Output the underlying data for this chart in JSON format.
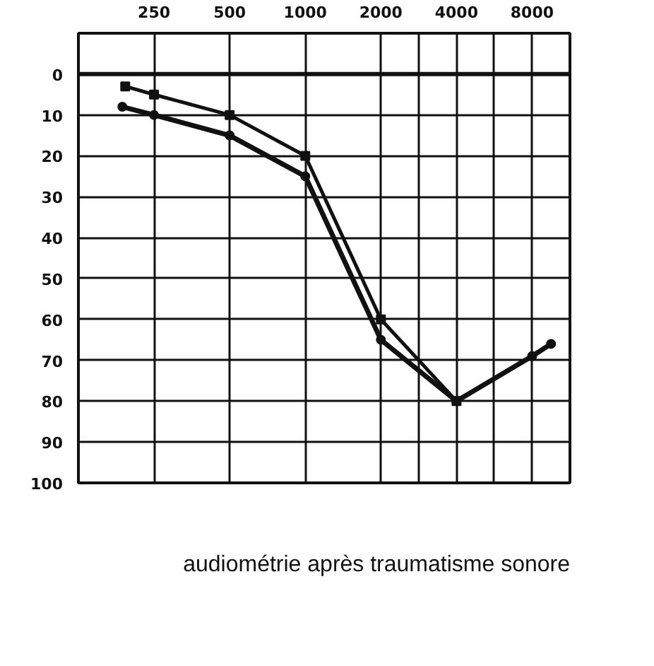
{
  "chart_data": {
    "type": "line",
    "log": "x",
    "xlim": [
      125,
      11314
    ],
    "ylim": [
      100,
      -10
    ],
    "xticks": [
      250,
      500,
      1000,
      2000,
      {
        "value": 2828,
        "label": null
      },
      4000,
      {
        "value": 5657,
        "label": null
      },
      8000
    ],
    "yticks": [
      0,
      10,
      20,
      30,
      40,
      50,
      60,
      70,
      80,
      90,
      100
    ],
    "series": [
      {
        "color": "#111111",
        "marker": "square",
        "x": [
          192,
          250,
          500,
          1000,
          2000,
          4000
        ],
        "values": [
          3,
          5,
          10,
          20,
          60,
          80
        ]
      },
      {
        "color": "#111111",
        "marker": "circle",
        "x": [
          187,
          250,
          500,
          1000,
          2000,
          4000,
          8000,
          9514
        ],
        "values": [
          8,
          10,
          15,
          25,
          65,
          80,
          69,
          66
        ]
      }
    ],
    "ref_lines": [
      {
        "axis": "y",
        "value": 0,
        "color": "#111111"
      }
    ],
    "grid": true,
    "annotations": [
      "audiométrie après traumatisme sonore"
    ]
  }
}
